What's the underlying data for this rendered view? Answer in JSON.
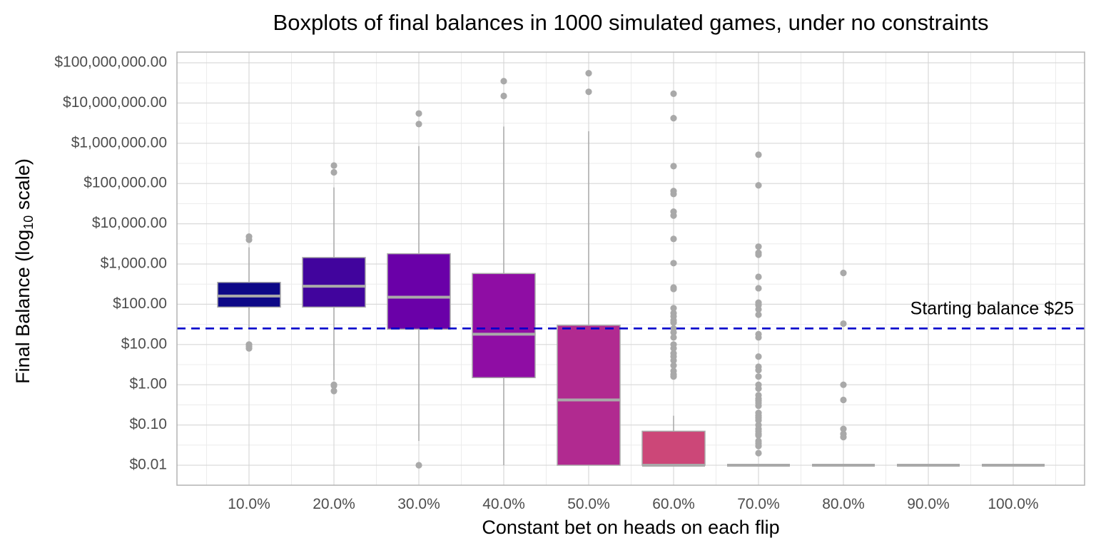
{
  "chart_data": {
    "type": "boxplot",
    "title": "Boxplots of final balances in 1000 simulated games, under no constraints",
    "xlabel": "Constant bet on heads on each flip",
    "ylabel_main": "Final Balance (log",
    "ylabel_sub": "10",
    "ylabel_end": " scale)",
    "y_scale": "log10",
    "ylim": [
      0.005,
      150000000
    ],
    "grid": true,
    "y_ticks": [
      0.01,
      0.1,
      1,
      10,
      100,
      1000,
      10000,
      100000,
      1000000,
      10000000,
      100000000
    ],
    "y_tick_labels": [
      "$0.01",
      "$0.10",
      "$1.00",
      "$10.00",
      "$100.00",
      "$1,000.00",
      "$10,000.00",
      "$100,000.00",
      "$1,000,000.00",
      "$10,000,000.00",
      "$100,000,000.00"
    ],
    "categories": [
      "10.0%",
      "20.0%",
      "30.0%",
      "40.0%",
      "50.0%",
      "60.0%",
      "70.0%",
      "80.0%",
      "90.0%",
      "100.0%"
    ],
    "boxes": [
      {
        "category": "10.0%",
        "whisker_low": 25,
        "q1": 85,
        "median": 160,
        "q3": 350,
        "whisker_high": 2600,
        "color": "#0d0887",
        "outliers": [
          4800,
          4000,
          10,
          9,
          8
        ]
      },
      {
        "category": "20.0%",
        "whisker_low": 1.3,
        "q1": 85,
        "median": 280,
        "q3": 1450,
        "whisker_high": 80000,
        "color": "#41049d",
        "outliers": [
          280000,
          190000,
          1.0,
          0.95,
          0.7
        ]
      },
      {
        "category": "30.0%",
        "whisker_low": 0.04,
        "q1": 24,
        "median": 150,
        "q3": 1800,
        "whisker_high": 850000,
        "color": "#6a00a8",
        "outliers": [
          5500000,
          3000000,
          0.01
        ]
      },
      {
        "category": "40.0%",
        "whisker_low": 0.01,
        "q1": 1.5,
        "median": 18,
        "q3": 580,
        "whisker_high": 2600000,
        "color": "#8f0da4",
        "outliers": [
          35000000,
          15000000
        ]
      },
      {
        "category": "50.0%",
        "whisker_low": 0.01,
        "q1": 0.01,
        "median": 0.42,
        "q3": 30,
        "whisker_high": 2000000,
        "color": "#b12a90",
        "outliers": [
          55000000,
          19000000
        ]
      },
      {
        "category": "60.0%",
        "whisker_low": 0.01,
        "q1": 0.01,
        "median": 0.01,
        "q3": 0.07,
        "whisker_high": 0.17,
        "color": "#cc4778",
        "outliers": [
          17000000,
          4200000,
          270000,
          65000,
          55000,
          20000,
          16000,
          4200,
          1050,
          260,
          240,
          80,
          60,
          50,
          40,
          35,
          25,
          20,
          15,
          10,
          8,
          6,
          5,
          4,
          3,
          2.2,
          1.8,
          1.6
        ]
      },
      {
        "category": "70.0%",
        "whisker_low": 0.01,
        "q1": 0.01,
        "median": 0.01,
        "q3": 0.01,
        "whisker_high": 0.01,
        "color": "#e16462",
        "outliers": [
          520000,
          90000,
          2700,
          1900,
          1700,
          480,
          250,
          110,
          95,
          75,
          55,
          18,
          15,
          5,
          2.8,
          2.3,
          1.6,
          1.0,
          0.8,
          0.55,
          0.45,
          0.4,
          0.35,
          0.3,
          0.2,
          0.17,
          0.15,
          0.13,
          0.1,
          0.08,
          0.07,
          0.06,
          0.055,
          0.04,
          0.035,
          0.03,
          0.02
        ]
      },
      {
        "category": "80.0%",
        "whisker_low": 0.01,
        "q1": 0.01,
        "median": 0.01,
        "q3": 0.01,
        "whisker_high": 0.01,
        "color": "#f2844b",
        "outliers": [
          600,
          33,
          1.0,
          0.42,
          0.08,
          0.06,
          0.05
        ]
      },
      {
        "category": "90.0%",
        "whisker_low": 0.01,
        "q1": 0.01,
        "median": 0.01,
        "q3": 0.01,
        "whisker_high": 0.01,
        "color": "#fca636",
        "outliers": []
      },
      {
        "category": "100.0%",
        "whisker_low": 0.01,
        "q1": 0.01,
        "median": 0.01,
        "q3": 0.01,
        "whisker_high": 0.01,
        "color": "#fcce25",
        "outliers": []
      }
    ],
    "reference_line": {
      "value": 25,
      "style": "dashed",
      "color": "#0000cc",
      "label": "Starting balance $25"
    },
    "colors": {
      "box_outline": "#a9a9a9",
      "median": "#a9a9a9",
      "whisker": "#a9a9a9",
      "outlier": "#a9a9a9",
      "grid": "#d9d9d9",
      "panel_border": "#b3b3b3"
    }
  }
}
